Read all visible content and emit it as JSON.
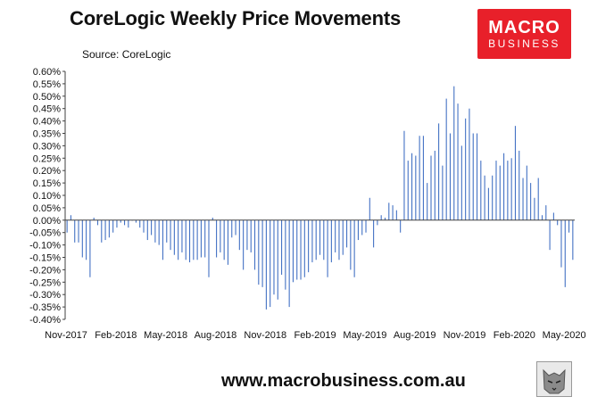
{
  "header": {
    "title": "CoreLogic Weekly Price Movements",
    "source": "Source: CoreLogic"
  },
  "logo": {
    "line1": "MACRO",
    "line2": "BUSINESS",
    "color": "#e8202a"
  },
  "footer": {
    "url": "www.macrobusiness.com.au"
  },
  "colors": {
    "bars": "#4472c4",
    "axis": "#404040"
  },
  "chart_data": {
    "type": "bar",
    "title": "CoreLogic Weekly Price Movements",
    "xlabel": "",
    "ylabel": "",
    "ylim": [
      -0.4,
      0.6
    ],
    "yticks": [
      "0.60%",
      "0.55%",
      "0.50%",
      "0.45%",
      "0.40%",
      "0.35%",
      "0.30%",
      "0.25%",
      "0.20%",
      "0.15%",
      "0.10%",
      "0.05%",
      "0.00%",
      "-0.05%",
      "-0.10%",
      "-0.15%",
      "-0.20%",
      "-0.25%",
      "-0.30%",
      "-0.35%",
      "-0.40%"
    ],
    "xticks": [
      "Nov-2017",
      "Feb-2018",
      "May-2018",
      "Aug-2018",
      "Nov-2018",
      "Feb-2019",
      "May-2019",
      "Aug-2019",
      "Nov-2019",
      "Feb-2020",
      "May-2020"
    ],
    "grid": false,
    "legend": "none",
    "values": [
      -0.05,
      0.02,
      -0.09,
      -0.09,
      -0.15,
      -0.16,
      -0.23,
      0.01,
      -0.02,
      -0.09,
      -0.08,
      -0.07,
      -0.05,
      -0.03,
      -0.01,
      -0.02,
      -0.03,
      0.0,
      -0.01,
      -0.03,
      -0.05,
      -0.08,
      -0.06,
      -0.09,
      -0.1,
      -0.16,
      -0.09,
      -0.12,
      -0.14,
      -0.16,
      -0.13,
      -0.16,
      -0.17,
      -0.16,
      -0.16,
      -0.15,
      -0.15,
      -0.23,
      0.01,
      -0.15,
      -0.13,
      -0.16,
      -0.18,
      -0.07,
      -0.06,
      -0.12,
      -0.2,
      -0.12,
      -0.13,
      -0.2,
      -0.26,
      -0.27,
      -0.36,
      -0.35,
      -0.3,
      -0.32,
      -0.22,
      -0.28,
      -0.35,
      -0.25,
      -0.24,
      -0.24,
      -0.23,
      -0.21,
      -0.17,
      -0.16,
      -0.14,
      -0.16,
      -0.23,
      -0.17,
      -0.13,
      -0.16,
      -0.14,
      -0.11,
      -0.2,
      -0.23,
      -0.08,
      -0.06,
      -0.05,
      0.09,
      -0.11,
      -0.02,
      0.02,
      0.01,
      0.07,
      0.06,
      0.04,
      -0.05,
      0.36,
      0.24,
      0.27,
      0.26,
      0.34,
      0.34,
      0.15,
      0.26,
      0.28,
      0.39,
      0.22,
      0.49,
      0.35,
      0.54,
      0.47,
      0.3,
      0.41,
      0.45,
      0.35,
      0.35,
      0.24,
      0.18,
      0.13,
      0.18,
      0.24,
      0.22,
      0.27,
      0.24,
      0.25,
      0.38,
      0.28,
      0.17,
      0.22,
      0.15,
      0.09,
      0.17,
      0.02,
      0.06,
      -0.12,
      0.03,
      -0.02,
      -0.19,
      -0.27,
      -0.05,
      -0.16
    ]
  }
}
